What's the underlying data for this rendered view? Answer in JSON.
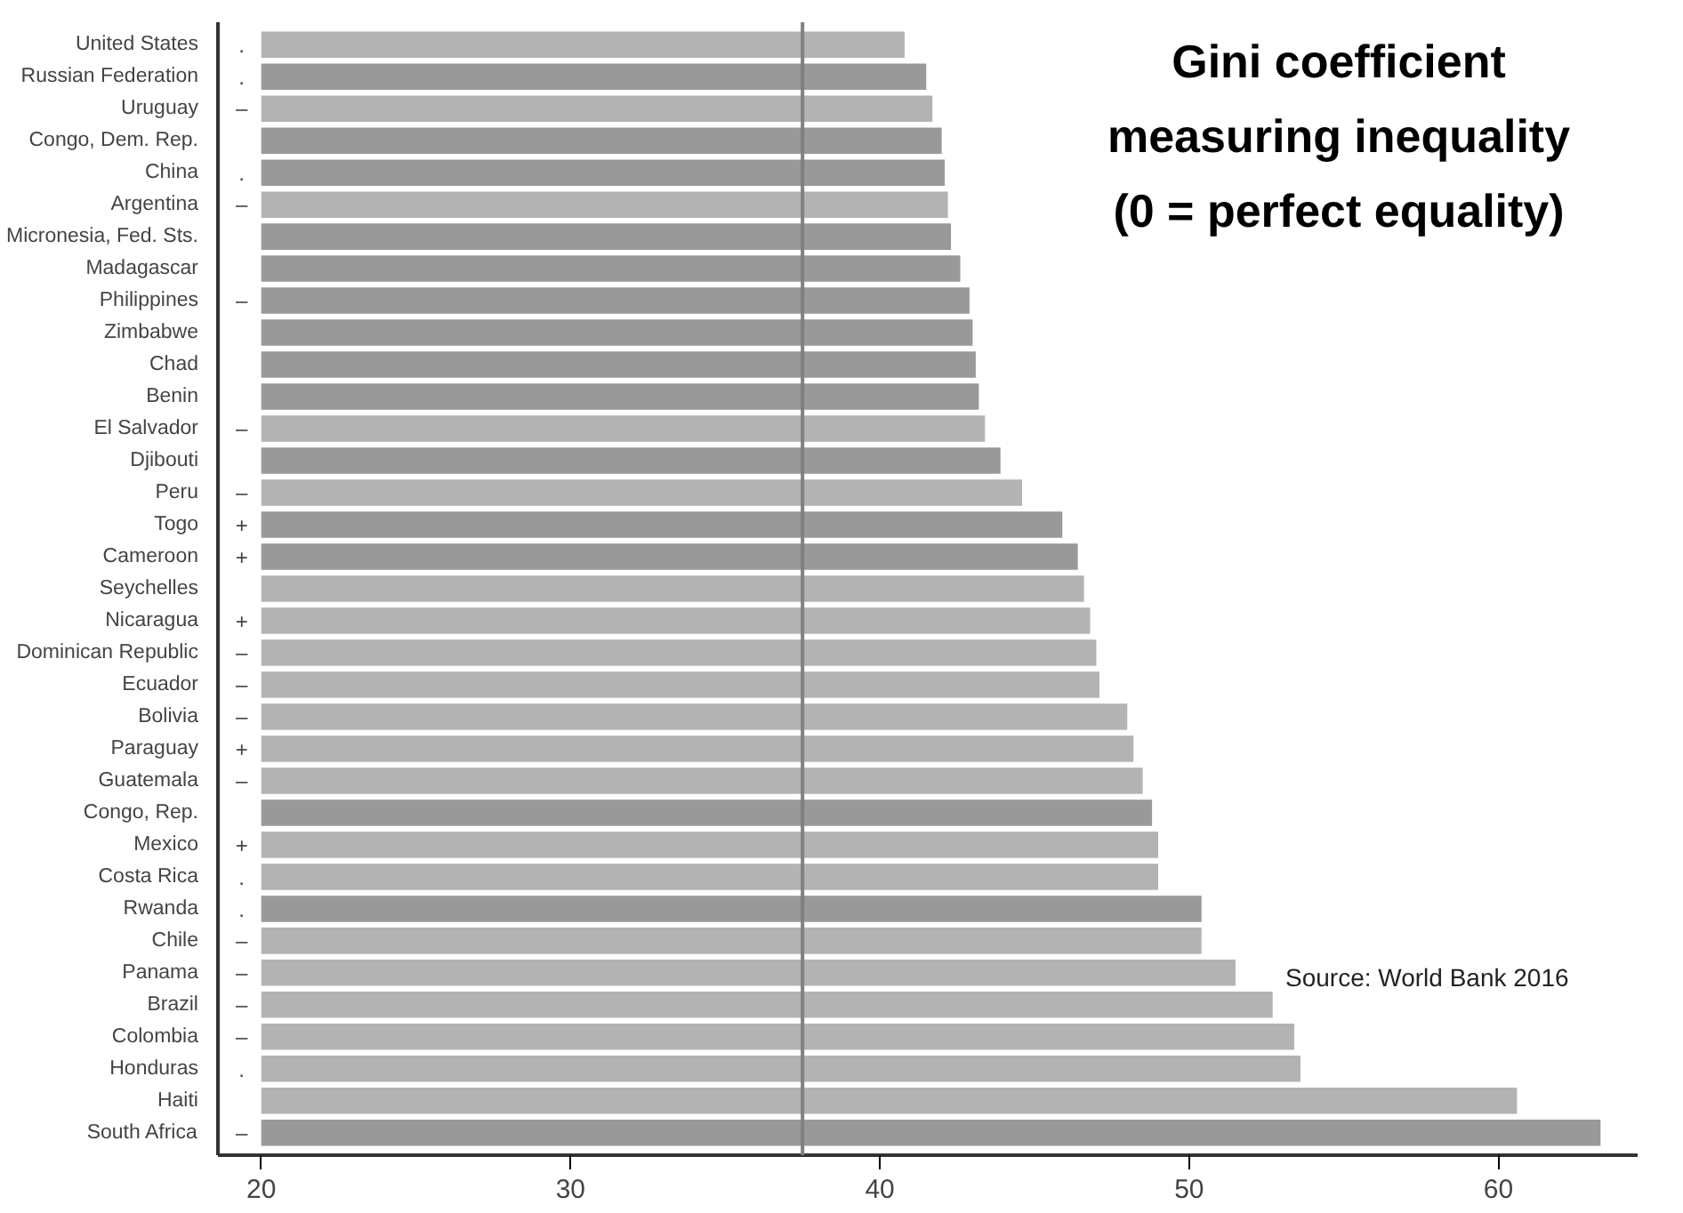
{
  "chart_data": {
    "type": "bar",
    "orientation": "horizontal",
    "title": "Gini coefficient measuring inequality (0 = perfect equality)",
    "categories": [
      "United States",
      "Russian Federation",
      "Uruguay",
      "Congo, Dem. Rep.",
      "China",
      "Argentina",
      "Micronesia, Fed. Sts.",
      "Madagascar",
      "Philippines",
      "Zimbabwe",
      "Chad",
      "Benin",
      "El Salvador",
      "Djibouti",
      "Peru",
      "Togo",
      "Cameroon",
      "Seychelles",
      "Nicaragua",
      "Dominican Republic",
      "Ecuador",
      "Bolivia",
      "Paraguay",
      "Guatemala",
      "Congo, Rep.",
      "Mexico",
      "Costa Rica",
      "Rwanda",
      "Chile",
      "Panama",
      "Brazil",
      "Colombia",
      "Honduras",
      "Haiti",
      "South Africa"
    ],
    "base": [
      20,
      20,
      20,
      20,
      20,
      20,
      20,
      20,
      20,
      20,
      20,
      20,
      20,
      20,
      20,
      20,
      20,
      20,
      20,
      20,
      20,
      20,
      20,
      20,
      20,
      20,
      20,
      20,
      20,
      20,
      20,
      20,
      20,
      20,
      20
    ],
    "values": [
      20.8,
      21.5,
      21.7,
      22.0,
      22.1,
      22.2,
      22.3,
      22.6,
      22.9,
      23.0,
      23.1,
      23.2,
      23.4,
      23.9,
      24.6,
      25.9,
      26.4,
      26.6,
      26.8,
      27.0,
      27.1,
      28.0,
      28.2,
      28.5,
      28.8,
      29.0,
      29.0,
      30.4,
      30.4,
      31.5,
      32.7,
      33.4,
      33.6,
      40.6,
      43.3
    ],
    "value_labels": [
      ".",
      ".",
      "–",
      null,
      ".",
      "–",
      null,
      null,
      "–",
      null,
      null,
      null,
      "–",
      null,
      "–",
      "+",
      "+",
      null,
      "+",
      "–",
      "–",
      "–",
      "+",
      "–",
      null,
      "+",
      ".",
      ".",
      "–",
      "–",
      "–",
      "–",
      ".",
      null,
      "–"
    ],
    "colors": [
      "#b3b3b3",
      "#999999",
      "#b3b3b3",
      "#999999",
      "#999999",
      "#b3b3b3",
      "#999999",
      "#999999",
      "#999999",
      "#999999",
      "#999999",
      "#999999",
      "#b3b3b3",
      "#999999",
      "#b3b3b3",
      "#999999",
      "#999999",
      "#b3b3b3",
      "#b3b3b3",
      "#b3b3b3",
      "#b3b3b3",
      "#b3b3b3",
      "#b3b3b3",
      "#b3b3b3",
      "#999999",
      "#b3b3b3",
      "#b3b3b3",
      "#999999",
      "#b3b3b3",
      "#b3b3b3",
      "#b3b3b3",
      "#b3b3b3",
      "#b3b3b3",
      "#b3b3b3",
      "#999999"
    ],
    "grid": false,
    "xlim": [
      18.6,
      64.5
    ],
    "xticks": [
      20,
      30,
      40,
      50,
      60
    ],
    "ref_lines": [
      {
        "axis": "x",
        "value": 37.5,
        "color": "#808080"
      }
    ],
    "annotations": [
      "Source: World Bank 2016"
    ]
  }
}
